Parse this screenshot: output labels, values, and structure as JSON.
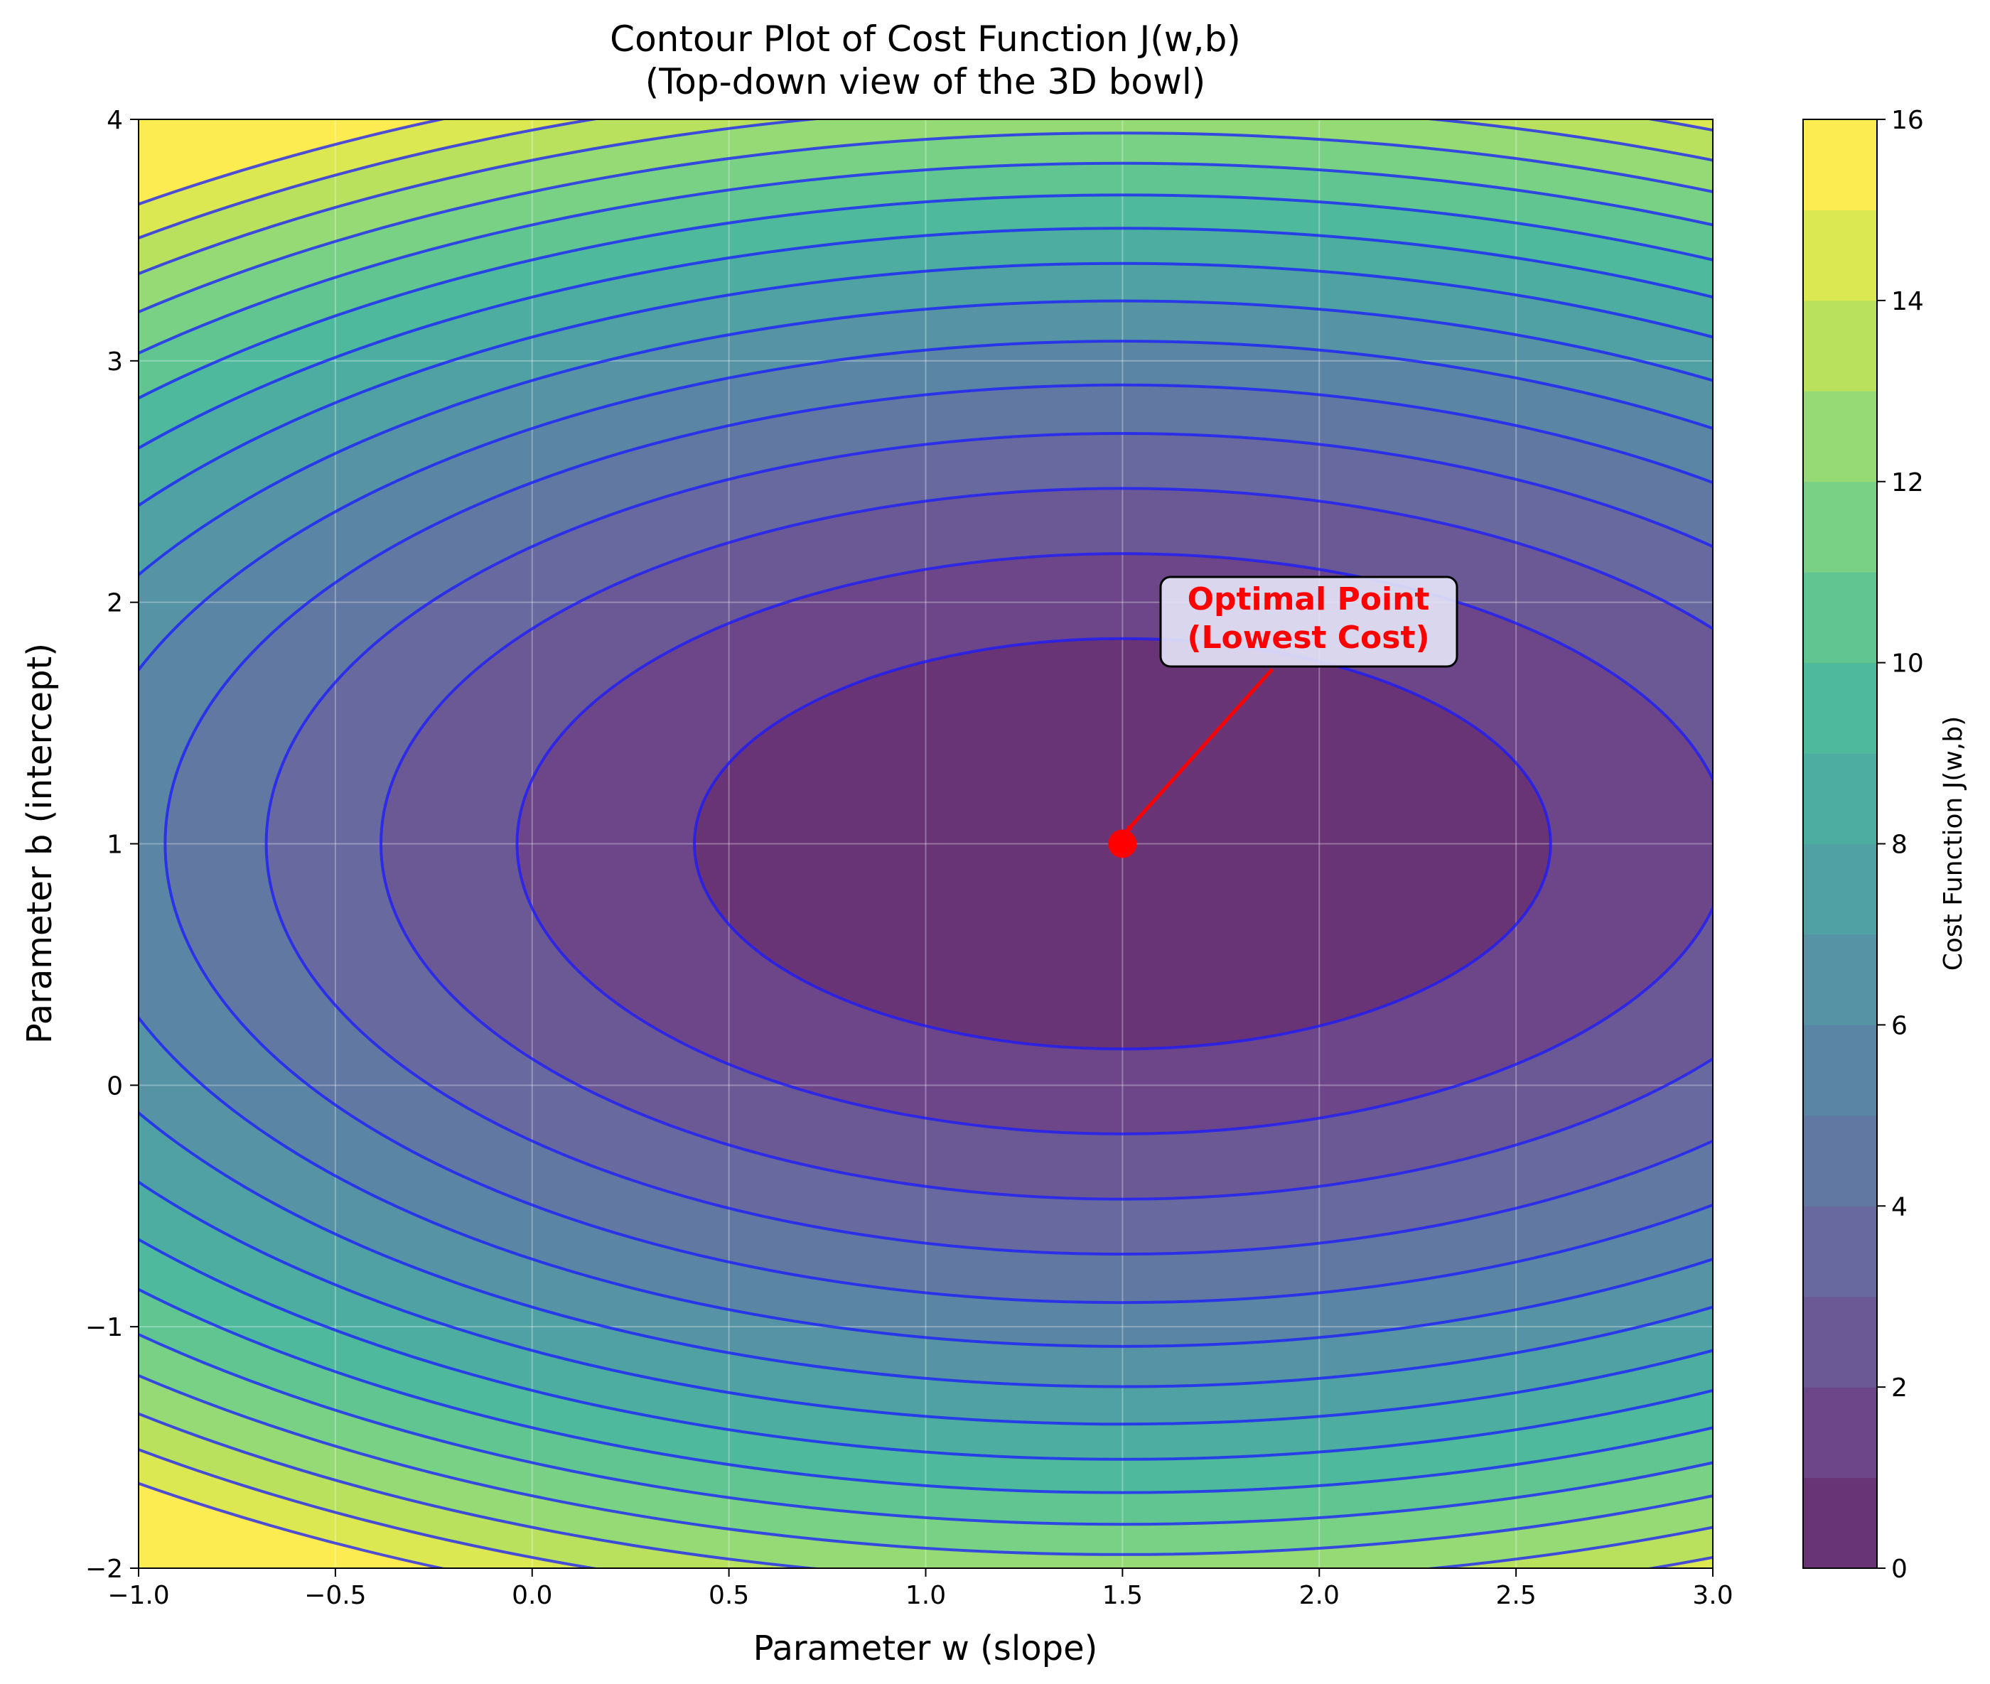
{
  "chart_data": {
    "type": "contour",
    "title": "Contour Plot of Cost Function J(w,b)",
    "subtitle": "(Top-down view of the 3D bowl)",
    "xlabel": "Parameter w (slope)",
    "ylabel": "Parameter b (intercept)",
    "xlim": [
      -1.0,
      3.0
    ],
    "ylim": [
      -2,
      4
    ],
    "x_ticks": [
      "−1.0",
      "−0.5",
      "0.0",
      "0.5",
      "1.0",
      "1.5",
      "2.0",
      "2.5",
      "3.0"
    ],
    "y_ticks": [
      "−2",
      "−1",
      "0",
      "1",
      "2",
      "3",
      "4"
    ],
    "grid": true,
    "function": {
      "form": "J = a*(w - w0)^2 + c*(b - b0)^2",
      "w0": 1.5,
      "b0": 1.0,
      "a": 0.845,
      "c": 1.385
    },
    "filled_levels": [
      0,
      1,
      2,
      3,
      4,
      5,
      6,
      7,
      8,
      9,
      10,
      11,
      12,
      13,
      14,
      15,
      16
    ],
    "line_levels": [
      1,
      2,
      3,
      4,
      5,
      6,
      7,
      8,
      9,
      10,
      11,
      12,
      13,
      14,
      15
    ],
    "line_color": "#1a1aff",
    "colormap": "viridis",
    "colorbar": {
      "label": "Cost Function J(w,b)",
      "ticks": [
        "0",
        "2",
        "4",
        "6",
        "8",
        "10",
        "12",
        "14",
        "16"
      ],
      "range": [
        0,
        16
      ]
    },
    "optimal_point": {
      "w": 1.5,
      "b": 1.0,
      "color": "#ff0000"
    },
    "annotation": {
      "lines": [
        "Optimal Point",
        "(Lowest Cost)"
      ],
      "color": "#ff0000",
      "text_anchor": {
        "w": 1.85,
        "b": 1.95
      }
    }
  }
}
